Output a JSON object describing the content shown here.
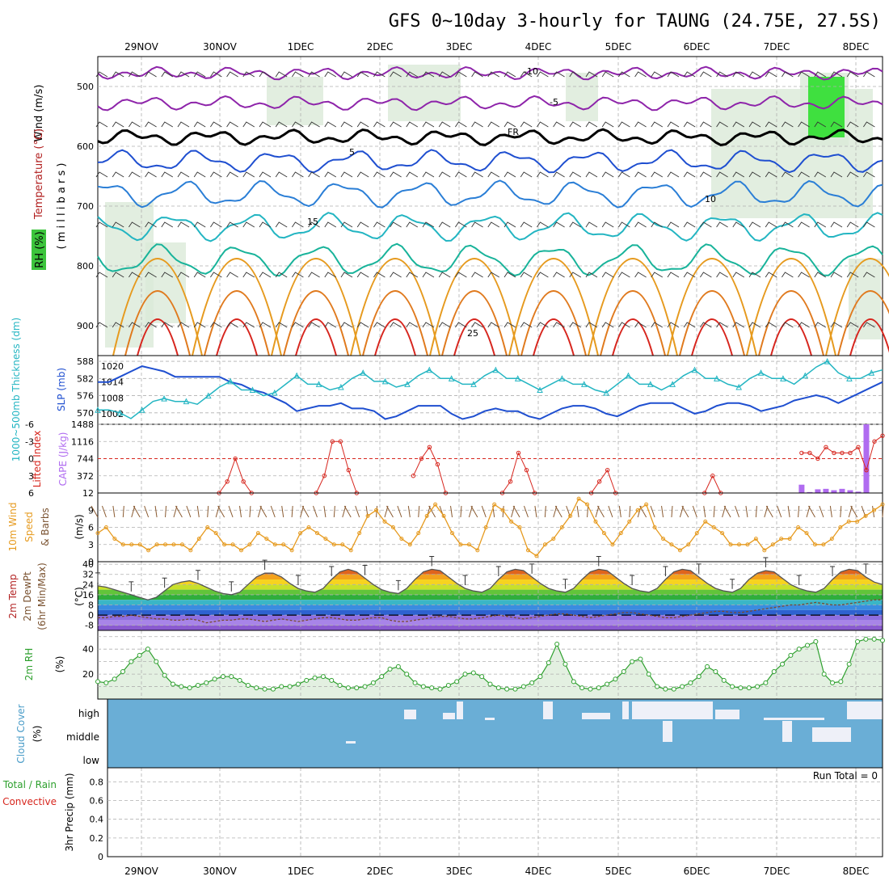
{
  "title": "GFS 0~10day 3-hourly for TAUNG (24.75E, 27.5S)",
  "dates": [
    "29NOV",
    "30NOV",
    "1DEC",
    "2DEC",
    "3DEC",
    "4DEC",
    "5DEC",
    "6DEC",
    "7DEC",
    "8DEC"
  ],
  "colors": {
    "purple": "#8e24aa",
    "blue": "#1f4fd0",
    "cyan": "#23b5c2",
    "teal": "#18b39a",
    "orange": "#e69a1e",
    "red": "#d7261e",
    "green": "#2ea02e",
    "cloud": "#6aaed6",
    "rh_fill": "#e3f0e1",
    "cape": "#b06cf0"
  },
  "labels": {
    "wind": "Wind (m/s)",
    "temperature": "Temperature (°C)",
    "rh": "RH (%)",
    "millibars": "( m i l l i b a r s )",
    "thickness": "1000~500mb Thickness (dm)",
    "slp": "SLP (mb)",
    "lifted_index": "Lifted Index",
    "cape": "CAPE (J/kg)",
    "wind10m": "10m Wind",
    "speed": "Speed",
    "barbs": "& Barbs",
    "ms": "(m/s)",
    "temp2m": "2m Temp",
    "dewpt2m": "2m DewPt",
    "minmax": "(6hr Min/Max)",
    "degc": "(°C)",
    "rh2m": "2m RH",
    "pct": "(%)",
    "cloud": "Cloud Cover",
    "total_rain": "Total / Rain",
    "convective": "Convective",
    "precip": "3hr Precip (mm)",
    "run_total": "Run Total = 0"
  },
  "cloud_levels": [
    "high",
    "middle",
    "low"
  ],
  "chart_data": [
    {
      "type": "contour",
      "panel": "upper-air cross-section",
      "yticks": [
        500,
        600,
        700,
        800,
        900
      ],
      "isotherm_labels": [
        "-10",
        "-5",
        "FR",
        "5",
        "10",
        "15",
        "25"
      ]
    },
    {
      "type": "line",
      "panel": "thickness / SLP",
      "yticks_left": [
        570,
        576,
        582,
        588
      ],
      "yticks_right": [
        1002,
        1008,
        1014,
        1020
      ],
      "series": [
        {
          "name": "1000~500mb Thickness (dm)",
          "values": [
            571,
            571,
            570,
            568,
            571,
            574,
            575,
            574,
            574,
            573,
            576,
            579,
            581,
            578,
            578,
            576,
            577,
            580,
            583,
            580,
            580,
            578,
            579,
            582,
            584,
            581,
            581,
            579,
            580,
            583,
            585,
            582,
            582,
            580,
            580,
            583,
            585,
            582,
            582,
            580,
            578,
            580,
            582,
            580,
            580,
            578,
            577,
            580,
            583,
            580,
            580,
            578,
            580,
            583,
            585,
            582,
            582,
            580,
            579,
            582,
            584,
            582,
            582,
            580,
            583,
            586,
            588,
            584,
            582,
            582,
            584,
            585
          ]
        },
        {
          "name": "SLP (mb)",
          "values": [
            1014,
            1014,
            1016,
            1018,
            1020,
            1019,
            1018,
            1016,
            1016,
            1016,
            1016,
            1016,
            1014,
            1013,
            1011,
            1010,
            1008,
            1006,
            1003,
            1004,
            1005,
            1005,
            1006,
            1004,
            1004,
            1003,
            1000,
            1001,
            1003,
            1005,
            1005,
            1005,
            1002,
            1000,
            1001,
            1003,
            1004,
            1003,
            1003,
            1001,
            1000,
            1002,
            1004,
            1005,
            1005,
            1004,
            1002,
            1001,
            1003,
            1005,
            1006,
            1006,
            1006,
            1004,
            1002,
            1003,
            1005,
            1006,
            1006,
            1005,
            1003,
            1004,
            1005,
            1007,
            1008,
            1009,
            1008,
            1006,
            1008,
            1010,
            1012,
            1014
          ]
        }
      ]
    },
    {
      "type": "bar",
      "panel": "Lifted Index / CAPE",
      "yticks_left": [
        "-6",
        "-3",
        "0",
        "3",
        "6"
      ],
      "yticks_right": [
        "12",
        "372",
        "744",
        "1116",
        "1488"
      ],
      "series": [
        {
          "name": "Lifted Index",
          "values": [
            null,
            null,
            null,
            null,
            null,
            null,
            null,
            null,
            null,
            null,
            null,
            null,
            null,
            null,
            null,
            6,
            4,
            0,
            4,
            6,
            null,
            null,
            null,
            null,
            null,
            null,
            null,
            6,
            3,
            -3,
            -3,
            2,
            6,
            null,
            null,
            null,
            null,
            null,
            null,
            3,
            0,
            -2,
            1,
            6,
            null,
            null,
            null,
            null,
            null,
            null,
            6,
            4,
            -1,
            2,
            6,
            null,
            null,
            null,
            null,
            null,
            null,
            6,
            4,
            2,
            6,
            null,
            null,
            null,
            null,
            null,
            null,
            null,
            null,
            null,
            null,
            6,
            3,
            6,
            null,
            null,
            null,
            null,
            null,
            null,
            null,
            null,
            null,
            -1,
            -1,
            0,
            -2,
            -1,
            -1,
            -1,
            -2,
            2,
            -3,
            -4
          ]
        },
        {
          "name": "CAPE (J/kg)",
          "values": [
            0,
            0,
            0,
            0,
            0,
            0,
            0,
            0,
            0,
            0,
            0,
            0,
            0,
            0,
            0,
            0,
            0,
            0,
            0,
            0,
            0,
            0,
            0,
            0,
            0,
            0,
            0,
            0,
            0,
            0,
            0,
            0,
            0,
            0,
            0,
            0,
            0,
            0,
            0,
            0,
            0,
            0,
            0,
            0,
            0,
            0,
            0,
            0,
            0,
            0,
            0,
            0,
            0,
            0,
            0,
            0,
            0,
            0,
            0,
            0,
            0,
            0,
            0,
            0,
            0,
            0,
            0,
            0,
            0,
            0,
            0,
            0,
            0,
            0,
            0,
            0,
            0,
            0,
            0,
            0,
            0,
            0,
            0,
            0,
            0,
            0,
            0,
            180,
            20,
            80,
            90,
            60,
            90,
            60,
            30,
            1488
          ]
        }
      ]
    },
    {
      "type": "line",
      "panel": "10m wind speed",
      "yticks": [
        3,
        6,
        9
      ],
      "series": [
        {
          "name": "10m Wind Speed (m/s)",
          "values": [
            5,
            6,
            4,
            3,
            3,
            3,
            2,
            3,
            3,
            3,
            3,
            2,
            4,
            6,
            5,
            3,
            3,
            2,
            3,
            5,
            4,
            3,
            3,
            2,
            5,
            6,
            5,
            4,
            3,
            3,
            2,
            5,
            8,
            9,
            7,
            6,
            4,
            3,
            5,
            8,
            10,
            8,
            5,
            3,
            3,
            2,
            6,
            10,
            9,
            7,
            6,
            2,
            1,
            3,
            4,
            6,
            8,
            11,
            10,
            7,
            5,
            3,
            5,
            7,
            9,
            10,
            6,
            4,
            3,
            2,
            3,
            5,
            7,
            6,
            5,
            3,
            3,
            3,
            4,
            2,
            3,
            4,
            4,
            6,
            5,
            3,
            3,
            4,
            6,
            7,
            7,
            8,
            9,
            10
          ]
        }
      ]
    },
    {
      "type": "area",
      "panel": "2m temperature / dewpoint",
      "yticks": [
        -8,
        0,
        8,
        16,
        24,
        32,
        40
      ],
      "series": [
        {
          "name": "2m Temp",
          "values": [
            23,
            22,
            20,
            18,
            16,
            14,
            12,
            14,
            19,
            24,
            26,
            27,
            25,
            22,
            19,
            17,
            16,
            18,
            24,
            30,
            33,
            33,
            30,
            25,
            21,
            19,
            18,
            21,
            28,
            34,
            36,
            34,
            29,
            24,
            20,
            18,
            17,
            21,
            28,
            34,
            36,
            35,
            30,
            25,
            21,
            19,
            18,
            21,
            28,
            34,
            36,
            35,
            30,
            25,
            21,
            19,
            18,
            21,
            28,
            34,
            36,
            35,
            30,
            25,
            21,
            19,
            18,
            21,
            28,
            34,
            36,
            35,
            30,
            25,
            21,
            19,
            18,
            21,
            28,
            33,
            35,
            34,
            29,
            24,
            21,
            19,
            18,
            21,
            28,
            34,
            36,
            35,
            30,
            26,
            24
          ]
        },
        {
          "name": "2m DewPt",
          "values": [
            -2,
            -2,
            -1,
            -1,
            0,
            -1,
            -2,
            -3,
            -3,
            -4,
            -4,
            -3,
            -4,
            -6,
            -5,
            -4,
            -4,
            -3,
            -3,
            -4,
            -5,
            -4,
            -3,
            -4,
            -5,
            -4,
            -3,
            -2,
            -2,
            -3,
            -4,
            -4,
            -3,
            -2,
            -2,
            -4,
            -5,
            -5,
            -4,
            -3,
            -2,
            -1,
            -1,
            -2,
            -3,
            -3,
            -2,
            -1,
            0,
            -1,
            -2,
            -3,
            -2,
            -1,
            0,
            1,
            1,
            0,
            -1,
            -2,
            -1,
            0,
            1,
            2,
            2,
            1,
            0,
            -1,
            -2,
            -2,
            -1,
            0,
            1,
            2,
            3,
            3,
            2,
            2,
            3,
            4,
            5,
            6,
            7,
            8,
            8,
            9,
            10,
            9,
            8,
            8,
            9,
            10,
            11,
            12,
            12
          ]
        }
      ]
    },
    {
      "type": "area",
      "panel": "2m RH",
      "yticks": [
        20,
        40
      ],
      "series": [
        {
          "name": "2m RH (%)",
          "values": [
            14,
            13,
            16,
            22,
            30,
            35,
            40,
            30,
            19,
            12,
            10,
            9,
            11,
            13,
            16,
            18,
            18,
            15,
            11,
            9,
            8,
            8,
            10,
            10,
            12,
            15,
            17,
            18,
            15,
            11,
            9,
            9,
            10,
            13,
            18,
            24,
            26,
            20,
            13,
            10,
            9,
            8,
            11,
            14,
            20,
            21,
            18,
            12,
            9,
            8,
            8,
            10,
            13,
            18,
            29,
            44,
            28,
            14,
            9,
            8,
            9,
            12,
            16,
            22,
            30,
            32,
            20,
            10,
            8,
            8,
            10,
            13,
            18,
            26,
            22,
            15,
            10,
            9,
            9,
            10,
            13,
            22,
            28,
            35,
            40,
            43,
            46,
            20,
            13,
            14,
            28,
            46,
            48,
            48,
            47
          ]
        }
      ]
    },
    {
      "type": "heatmap",
      "panel": "cloud cover",
      "yticks": [
        "high",
        "middle",
        "low"
      ]
    },
    {
      "type": "bar",
      "panel": "3hr precip",
      "yticks": [
        0,
        0.2,
        0.4,
        0.6,
        0.8
      ],
      "series": [
        {
          "name": "3hr Precip (mm)",
          "values": []
        }
      ]
    }
  ]
}
